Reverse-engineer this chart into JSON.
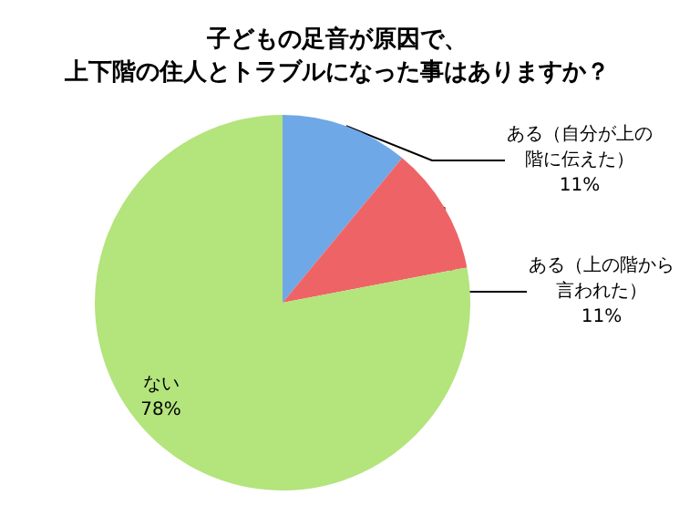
{
  "chart_data": {
    "type": "pie",
    "title": "子どもの足音が原因で、上下階の住人とトラブルになった事はありますか？",
    "categories": [
      "ある（自分が上の階に伝えた）",
      "ある（上の階から言われた）",
      "ない"
    ],
    "values": [
      11,
      11,
      78
    ],
    "value_labels": [
      "11%",
      "11%",
      "78%"
    ],
    "colors": [
      "#6fa8e6",
      "#ee6466",
      "#b4e47c"
    ],
    "legend": false
  }
}
